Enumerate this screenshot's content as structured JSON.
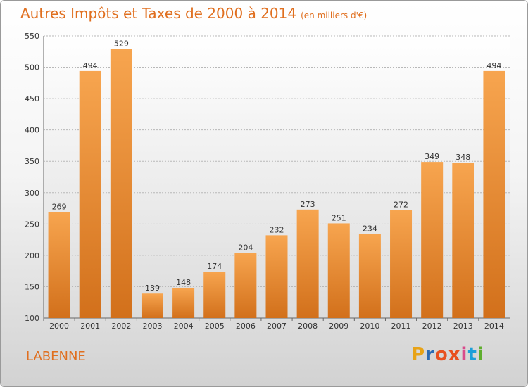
{
  "header": {
    "title": "Autres Impôts et Taxes de 2000 à 2014",
    "subtitle": "(en milliers d'€)"
  },
  "footer": {
    "place": "LABENNE",
    "logo_letters": [
      "P",
      "r",
      "o",
      "x",
      "i",
      "t",
      "i"
    ],
    "logo_colors": [
      "#e8a317",
      "#2b6bb5",
      "#e8501f",
      "#e8501f",
      "#d94a8b",
      "#1d9fd8",
      "#5fae2e"
    ]
  },
  "chart_data": {
    "type": "bar",
    "title": "Autres Impôts et Taxes de 2000 à 2014",
    "subtitle": "(en milliers d'€)",
    "categories": [
      "2000",
      "2001",
      "2002",
      "2003",
      "2004",
      "2005",
      "2006",
      "2007",
      "2008",
      "2009",
      "2010",
      "2011",
      "2012",
      "2013",
      "2014"
    ],
    "values": [
      269,
      494,
      529,
      139,
      148,
      174,
      204,
      232,
      273,
      251,
      234,
      272,
      349,
      348,
      494
    ],
    "ylim": [
      100,
      550
    ],
    "yticks": [
      100,
      150,
      200,
      250,
      300,
      350,
      400,
      450,
      500,
      550
    ],
    "grid": true,
    "bar_color_top": "#f7a54f",
    "bar_color_bottom": "#d2701b"
  }
}
